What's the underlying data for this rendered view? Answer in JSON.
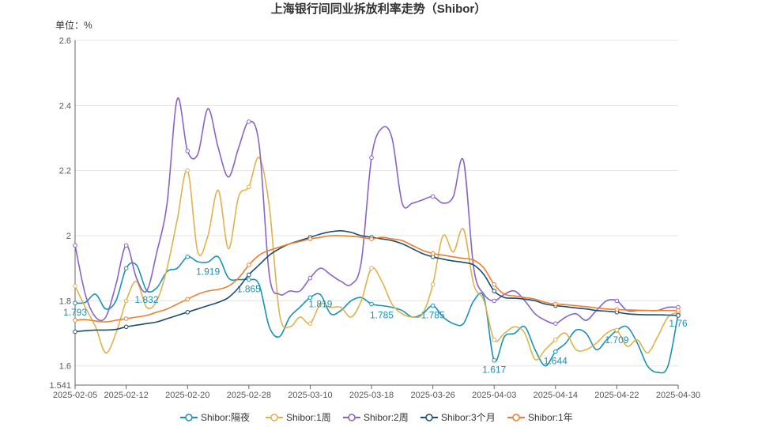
{
  "chart_data": {
    "type": "line",
    "title": "上海银行间同业拆放利率走势（Shibor）",
    "unit_label": "单位：%",
    "ylim": [
      1.541,
      2.6
    ],
    "y_ticks": [
      1.541,
      1.6,
      1.8,
      2,
      2.2,
      2.4,
      2.6
    ],
    "y_tick_labels": [
      "1.541",
      "1.6",
      "1.8",
      "2",
      "2.2",
      "2.4",
      "2.6"
    ],
    "grid": true,
    "legend_position": "bottom-center",
    "x_tick_labels": [
      "2025-02-05",
      "2025-02-12",
      "2025-02-20",
      "2025-02-28",
      "2025-03-10",
      "2025-03-18",
      "2025-03-26",
      "2025-04-03",
      "2025-04-14",
      "2025-04-22",
      "2025-04-30"
    ],
    "x_tick_index": [
      0,
      5,
      11,
      17,
      23,
      29,
      35,
      41,
      47,
      53,
      59
    ],
    "n_points": 60,
    "series": [
      {
        "name": "Shibor:隔夜",
        "color": "#1a92b5",
        "values": [
          1.793,
          1.795,
          1.82,
          1.775,
          1.8,
          1.9,
          1.91,
          1.832,
          1.84,
          1.89,
          1.9,
          1.935,
          1.92,
          1.919,
          1.935,
          1.87,
          1.865,
          1.865,
          1.85,
          1.72,
          1.69,
          1.75,
          1.78,
          1.81,
          1.819,
          1.76,
          1.77,
          1.8,
          1.81,
          1.79,
          1.785,
          1.78,
          1.77,
          1.75,
          1.76,
          1.785,
          1.75,
          1.73,
          1.73,
          1.8,
          1.81,
          1.617,
          1.69,
          1.7,
          1.72,
          1.65,
          1.6,
          1.644,
          1.67,
          1.71,
          1.7,
          1.65,
          1.68,
          1.709,
          1.72,
          1.67,
          1.6,
          1.58,
          1.6,
          1.76
        ],
        "point_labels": [
          [
            0,
            "1.793"
          ],
          [
            7,
            "1.832"
          ],
          [
            13,
            "1.919"
          ],
          [
            17,
            "1.865"
          ],
          [
            24,
            "1.819"
          ],
          [
            30,
            "1.785"
          ],
          [
            35,
            "1.785"
          ],
          [
            41,
            "1.617"
          ],
          [
            47,
            "1.644"
          ],
          [
            53,
            "1.709"
          ],
          [
            59,
            "1.76"
          ]
        ]
      },
      {
        "name": "Shibor:1周",
        "color": "#e0b24e",
        "values": [
          1.845,
          1.78,
          1.72,
          1.64,
          1.7,
          1.8,
          1.86,
          1.78,
          1.8,
          1.9,
          2.05,
          2.2,
          1.95,
          2.0,
          2.14,
          1.96,
          2.12,
          2.15,
          2.24,
          2.09,
          1.76,
          1.72,
          1.75,
          1.73,
          1.79,
          1.78,
          1.78,
          1.75,
          1.8,
          1.9,
          1.86,
          1.79,
          1.76,
          1.75,
          1.76,
          1.85,
          2.0,
          1.95,
          2.02,
          1.85,
          1.8,
          1.68,
          1.7,
          1.72,
          1.7,
          1.62,
          1.65,
          1.68,
          1.7,
          1.65,
          1.65,
          1.67,
          1.7,
          1.71,
          1.66,
          1.68,
          1.64,
          1.69,
          1.75,
          1.765
        ]
      },
      {
        "name": "Shibor:2周",
        "color": "#8b63c8",
        "values": [
          1.97,
          1.82,
          1.75,
          1.75,
          1.85,
          1.97,
          1.87,
          1.83,
          1.95,
          2.1,
          2.42,
          2.26,
          2.25,
          2.39,
          2.27,
          2.18,
          2.27,
          2.35,
          2.28,
          1.88,
          1.82,
          1.83,
          1.83,
          1.87,
          1.9,
          1.88,
          1.86,
          1.85,
          1.92,
          2.24,
          2.33,
          2.3,
          2.1,
          2.1,
          2.11,
          2.12,
          2.1,
          2.12,
          2.23,
          1.9,
          1.82,
          1.8,
          1.82,
          1.83,
          1.8,
          1.76,
          1.74,
          1.73,
          1.75,
          1.76,
          1.74,
          1.77,
          1.8,
          1.8,
          1.77,
          1.77,
          1.77,
          1.77,
          1.78,
          1.78
        ]
      },
      {
        "name": "Shibor:3个月",
        "color": "#1b4e70",
        "values": [
          1.705,
          1.708,
          1.71,
          1.71,
          1.712,
          1.72,
          1.725,
          1.73,
          1.735,
          1.745,
          1.755,
          1.765,
          1.775,
          1.785,
          1.795,
          1.81,
          1.84,
          1.88,
          1.91,
          1.94,
          1.96,
          1.975,
          1.985,
          1.995,
          2.005,
          2.012,
          2.015,
          2.01,
          2.0,
          1.995,
          1.99,
          1.985,
          1.975,
          1.96,
          1.945,
          1.935,
          1.928,
          1.922,
          1.918,
          1.91,
          1.88,
          1.83,
          1.81,
          1.808,
          1.805,
          1.8,
          1.79,
          1.785,
          1.782,
          1.778,
          1.775,
          1.77,
          1.768,
          1.765,
          1.76,
          1.758,
          1.757,
          1.757,
          1.756,
          1.755
        ]
      },
      {
        "name": "Shibor:1年",
        "color": "#ef7e30",
        "values": [
          1.74,
          1.742,
          1.738,
          1.735,
          1.74,
          1.745,
          1.75,
          1.755,
          1.765,
          1.775,
          1.79,
          1.805,
          1.82,
          1.83,
          1.835,
          1.845,
          1.87,
          1.91,
          1.94,
          1.955,
          1.965,
          1.975,
          1.982,
          1.99,
          1.995,
          2.0,
          2.0,
          1.998,
          1.995,
          1.99,
          1.995,
          1.99,
          1.985,
          1.97,
          1.955,
          1.945,
          1.94,
          1.935,
          1.93,
          1.925,
          1.9,
          1.85,
          1.82,
          1.815,
          1.81,
          1.805,
          1.795,
          1.79,
          1.788,
          1.785,
          1.782,
          1.778,
          1.775,
          1.773,
          1.772,
          1.771,
          1.77,
          1.77,
          1.77,
          1.77
        ]
      }
    ]
  }
}
